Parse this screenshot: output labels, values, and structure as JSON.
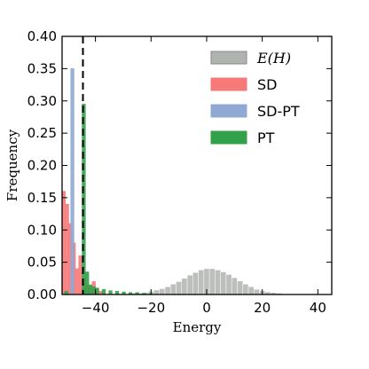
{
  "chart_data": {
    "type": "histogram",
    "xlabel": "Energy",
    "ylabel": "Frequency",
    "xlim": [
      -52,
      45
    ],
    "ylim": [
      0,
      0.4
    ],
    "xticks": [
      -40,
      -20,
      0,
      20,
      40
    ],
    "xtick_labels": [
      "−40",
      "−20",
      "0",
      "20",
      "40"
    ],
    "yticks": [
      0.0,
      0.05,
      0.1,
      0.15,
      0.2,
      0.25,
      0.3,
      0.35,
      0.4
    ],
    "ytick_labels": [
      "0.00",
      "0.05",
      "0.10",
      "0.15",
      "0.20",
      "0.25",
      "0.30",
      "0.35",
      "0.40"
    ],
    "grid": false,
    "legend_position": "top-right",
    "reference_line": {
      "x": -44.5,
      "style": "dashed"
    },
    "series": [
      {
        "name": "E(H)",
        "color": "#b0b4b0",
        "bin_width": 2,
        "x": [
          -50,
          -48,
          -46,
          -44,
          -42,
          -40,
          -38,
          -36,
          -34,
          -32,
          -30,
          -28,
          -26,
          -24,
          -22,
          -20,
          -18,
          -16,
          -14,
          -12,
          -10,
          -8,
          -6,
          -4,
          -2,
          0,
          2,
          4,
          6,
          8,
          10,
          12,
          14,
          16,
          18,
          20,
          22,
          24,
          26,
          28,
          30,
          32,
          34,
          36,
          38,
          40
        ],
        "values": [
          0.001,
          0.001,
          0.001,
          0.001,
          0.001,
          0.001,
          0.001,
          0.001,
          0.001,
          0.001,
          0.001,
          0.001,
          0.002,
          0.002,
          0.003,
          0.005,
          0.007,
          0.009,
          0.012,
          0.016,
          0.02,
          0.025,
          0.03,
          0.034,
          0.038,
          0.04,
          0.04,
          0.038,
          0.035,
          0.031,
          0.026,
          0.021,
          0.016,
          0.012,
          0.008,
          0.006,
          0.004,
          0.003,
          0.002,
          0.001,
          0.001,
          0.001,
          0.001,
          0.001,
          0.001,
          0.001
        ]
      },
      {
        "name": "SD",
        "color": "#f77a7a",
        "bin_width": 1.2,
        "x": [
          -51.4,
          -50.2,
          -49.0,
          -47.8,
          -46.6,
          -45.4,
          -44.2,
          -43.0,
          -41.8,
          -40.6,
          -39.4,
          -38.2,
          -37.0
        ],
        "values": [
          0.16,
          0.14,
          0.11,
          0.08,
          0.04,
          0.06,
          0.025,
          0.015,
          0.012,
          0.02,
          0.01,
          0.005,
          0.003
        ]
      },
      {
        "name": "SD-PT",
        "color": "#8fa9d3",
        "bin_width": 1.2,
        "x": [
          -48.3
        ],
        "values": [
          0.35
        ]
      },
      {
        "name": "PT",
        "color": "#33a04a",
        "bin_width": 1.2,
        "x": [
          -50.5,
          -44.2,
          -43.0,
          -41.8,
          -40.6,
          -39.4,
          -37.0,
          -34.6,
          -32.2,
          -29.8,
          -27.4,
          -25.0,
          -22.6,
          -20.2
        ],
        "values": [
          0.005,
          0.295,
          0.035,
          0.015,
          0.012,
          0.01,
          0.008,
          0.006,
          0.005,
          0.004,
          0.003,
          0.003,
          0.002,
          0.001
        ]
      }
    ]
  }
}
